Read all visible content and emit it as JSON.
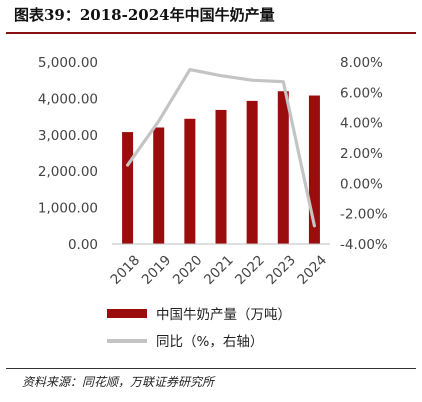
{
  "header": {
    "title": "图表39：2018-2024年中国牛奶产量"
  },
  "footer": {
    "source": "资料来源：同花顺，万联证券研究所"
  },
  "colors": {
    "bar": "#9b0d0d",
    "line": "#c4c4c4",
    "rule": "#8a1111"
  },
  "chart_data": {
    "type": "bar",
    "categories": [
      "2018",
      "2019",
      "2020",
      "2021",
      "2022",
      "2023",
      "2024"
    ],
    "series": [
      {
        "name": "中国牛奶产量（万吨）",
        "type": "bar",
        "axis": "left",
        "values": [
          3075,
          3201,
          3440,
          3683,
          3932,
          4197,
          4079
        ]
      },
      {
        "name": "同比（%，右轴）",
        "type": "line",
        "axis": "right",
        "values": [
          1.2,
          4.1,
          7.5,
          7.1,
          6.8,
          6.7,
          -2.8
        ]
      }
    ],
    "y_left": {
      "min": 0,
      "max": 5000,
      "ticks": [
        0,
        1000,
        2000,
        3000,
        4000,
        5000
      ],
      "tick_labels": [
        "0.00",
        "1,000.00",
        "2,000.00",
        "3,000.00",
        "4,000.00",
        "5,000.00"
      ]
    },
    "y_right": {
      "min": -4,
      "max": 8,
      "ticks": [
        -4,
        -2,
        0,
        2,
        4,
        6,
        8
      ],
      "tick_labels": [
        "-4.00%",
        "-2.00%",
        "0.00%",
        "2.00%",
        "4.00%",
        "6.00%",
        "8.00%"
      ]
    },
    "grid": false,
    "legend_position": "bottom"
  }
}
